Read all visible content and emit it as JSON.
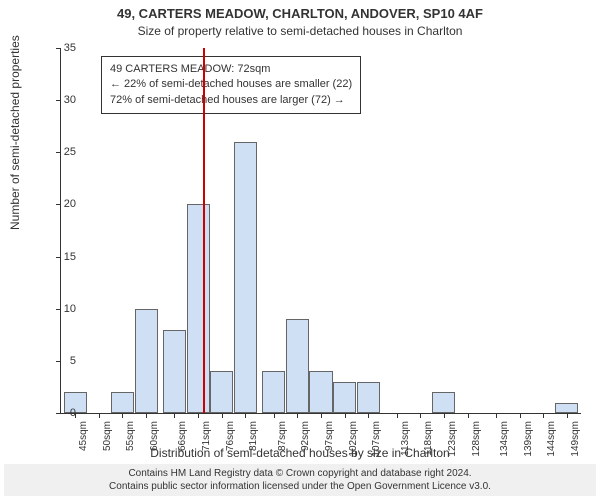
{
  "title_main": "49, CARTERS MEADOW, CHARLTON, ANDOVER, SP10 4AF",
  "title_sub": "Size of property relative to semi-detached houses in Charlton",
  "y_label": "Number of semi-detached properties",
  "x_label": "Distribution of semi-detached houses by size in Charlton",
  "footer_line1": "Contains HM Land Registry data © Crown copyright and database right 2024.",
  "footer_line2": "Contains public sector information licensed under the Open Government Licence v3.0.",
  "chart": {
    "type": "histogram",
    "ylim": [
      0,
      35
    ],
    "ytick_step": 5,
    "yticks": [
      0,
      5,
      10,
      15,
      20,
      25,
      30,
      35
    ],
    "bar_fill": "#cfe0f5",
    "bar_border": "#666666",
    "background": "#ffffff",
    "vline_x": 72,
    "vline_color": "#cc0000",
    "categories": [
      "45sqm",
      "50sqm",
      "55sqm",
      "60sqm",
      "66sqm",
      "71sqm",
      "76sqm",
      "81sqm",
      "87sqm",
      "92sqm",
      "97sqm",
      "102sqm",
      "107sqm",
      "113sqm",
      "118sqm",
      "123sqm",
      "128sqm",
      "134sqm",
      "139sqm",
      "144sqm",
      "149sqm"
    ],
    "x_values": [
      45,
      50,
      55,
      60,
      66,
      71,
      76,
      81,
      87,
      92,
      97,
      102,
      107,
      113,
      118,
      123,
      128,
      134,
      139,
      144,
      149
    ],
    "values": [
      2,
      0,
      2,
      10,
      8,
      20,
      4,
      26,
      4,
      9,
      4,
      3,
      3,
      0,
      0,
      2,
      0,
      0,
      0,
      0,
      1
    ],
    "xlim": [
      42,
      152
    ]
  },
  "info_box": {
    "line1": "49 CARTERS MEADOW: 72sqm",
    "line2": "← 22% of semi-detached houses are smaller (22)",
    "line3": "72% of semi-detached houses are larger (72) →"
  }
}
